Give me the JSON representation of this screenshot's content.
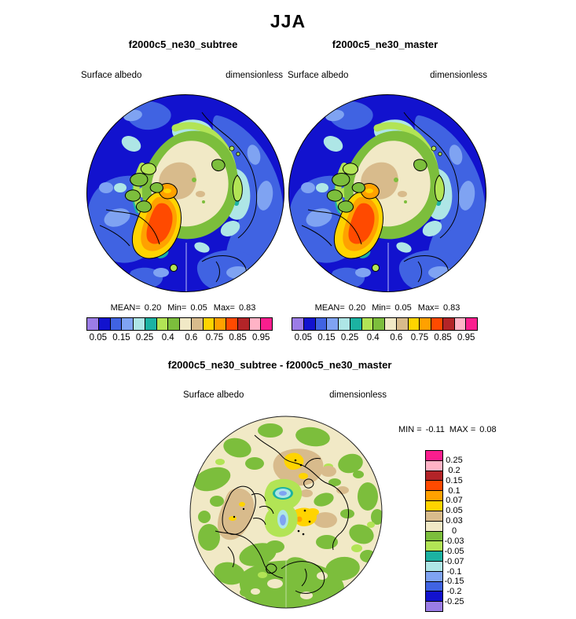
{
  "title": "JJA",
  "panels": [
    {
      "title": "f2000c5_ne30_subtree",
      "variable": "Surface albedo",
      "units": "dimensionless",
      "stats": {
        "mean_label": "MEAN=",
        "mean_value": "0.20",
        "min_label": "Min=",
        "min_value": "0.05",
        "max_label": "Max=",
        "max_value": "0.83"
      }
    },
    {
      "title": "f2000c5_ne30_master",
      "variable": "Surface albedo",
      "units": "dimensionless",
      "stats": {
        "mean_label": "MEAN=",
        "mean_value": "0.20",
        "min_label": "Min=",
        "min_value": "0.05",
        "max_label": "Max=",
        "max_value": "0.83"
      }
    }
  ],
  "colorbar": {
    "colors": [
      "#9B7CE6",
      "#1212CE",
      "#4063E2",
      "#7FA3F2",
      "#AEE6E6",
      "#1CB2A2",
      "#B2E455",
      "#7CBE3C",
      "#F1E9C6",
      "#D8BB8C",
      "#FFD400",
      "#FFA100",
      "#FF4A00",
      "#B32428",
      "#FFB3C6",
      "#FA1E8E"
    ],
    "tick_labels": [
      "0.05",
      "0.15",
      "0.25",
      "0.4",
      "0.6",
      "0.75",
      "0.85",
      "0.95"
    ]
  },
  "diff_panel": {
    "title": "f2000c5_ne30_subtree - f2000c5_ne30_master",
    "variable": "Surface albedo",
    "units": "dimensionless",
    "min_label": "MIN =",
    "min_value": "-0.11",
    "max_label": "MAX =",
    "max_value": "0.08"
  },
  "diff_colorbar": {
    "colors": [
      "#FA1E8E",
      "#FFB3C6",
      "#B32428",
      "#FF4A00",
      "#FFA100",
      "#FFD400",
      "#D8BB8C",
      "#F1E9C6",
      "#7CBE3C",
      "#B2E455",
      "#1CB2A2",
      "#AEE6E6",
      "#7FA3F2",
      "#4063E2",
      "#1212CE",
      "#9B7CE6"
    ],
    "tick_labels": [
      "0.25",
      "0.2",
      "0.15",
      "0.1",
      "0.07",
      "0.05",
      "0.03",
      "0",
      "-0.03",
      "-0.05",
      "-0.07",
      "-0.1",
      "-0.15",
      "-0.2",
      "-0.25"
    ]
  },
  "chart_data": {
    "type": "heatmap",
    "subtype": "north-polar-stereographic-filled-contour-maps",
    "title": "JJA",
    "variable": "Surface albedo",
    "units": "dimensionless",
    "panels": [
      {
        "name": "f2000c5_ne30_subtree",
        "mean": 0.2,
        "min": 0.05,
        "max": 0.83,
        "colorbar_ticks": [
          0.05,
          0.15,
          0.25,
          0.4,
          0.6,
          0.75,
          0.85,
          0.95
        ],
        "legend_position": "horizontal-below"
      },
      {
        "name": "f2000c5_ne30_master",
        "mean": 0.2,
        "min": 0.05,
        "max": 0.83,
        "colorbar_ticks": [
          0.05,
          0.15,
          0.25,
          0.4,
          0.6,
          0.75,
          0.85,
          0.95
        ],
        "legend_position": "horizontal-below"
      },
      {
        "name": "f2000c5_ne30_subtree - f2000c5_ne30_master",
        "min": -0.11,
        "max": 0.08,
        "colorbar_ticks": [
          0.25,
          0.2,
          0.15,
          0.1,
          0.07,
          0.05,
          0.03,
          0,
          -0.03,
          -0.05,
          -0.07,
          -0.1,
          -0.15,
          -0.2,
          -0.25
        ],
        "legend_position": "vertical-right"
      }
    ],
    "palette_low_to_high": [
      "#9B7CE6",
      "#1212CE",
      "#4063E2",
      "#7FA3F2",
      "#AEE6E6",
      "#1CB2A2",
      "#B2E455",
      "#7CBE3C",
      "#F1E9C6",
      "#D8BB8C",
      "#FFD400",
      "#FFA100",
      "#FF4A00",
      "#B32428",
      "#FFB3C6",
      "#FA1E8E"
    ]
  }
}
